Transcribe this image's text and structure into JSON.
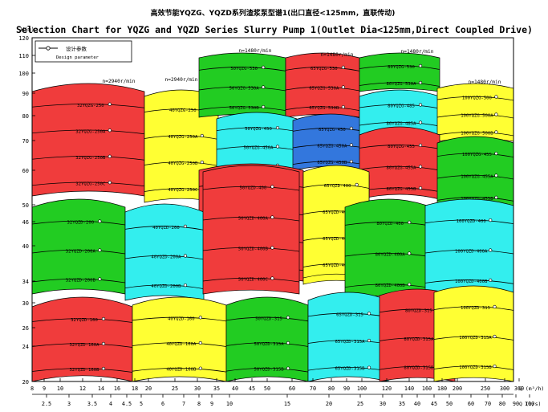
{
  "chart_data": {
    "type": "area",
    "title_cn": "高效节能YQZG、YQZD系列渣浆泵型谱1(出口直径<125mm，直联传动)",
    "title_en": "Selection Chart for YQZG and YQZD Series Slurry Pump 1(Outlet Dia<125mm,Direct Coupled Drive)",
    "ylabel": "H(m)",
    "xlabel_q": "Q (m³/h)",
    "xlabel_l": "Q (l/s)",
    "x_scale": "log",
    "y_scale": "log",
    "ylim": [
      20,
      120
    ],
    "xlim": [
      8,
      360
    ],
    "y_ticks": [
      120,
      110,
      100,
      90,
      80,
      70,
      60,
      50,
      46,
      40,
      34,
      30,
      26,
      24,
      20
    ],
    "x_ticks_q": [
      "8",
      "9",
      "10",
      "12",
      "14",
      "16",
      "18",
      "20",
      "25",
      "30",
      "35",
      "40",
      "45",
      "50",
      "60",
      "70",
      "80",
      "90",
      "100",
      "120",
      "140",
      "160",
      "180",
      "200",
      "250",
      "300",
      "360"
    ],
    "x_ticks_l": [
      "2.5",
      "3",
      "3.5",
      "4",
      "4.5",
      "5",
      "6",
      "7",
      "8",
      "9",
      "10",
      "15",
      "20",
      "25",
      "30",
      "35",
      "40",
      "45",
      "50",
      "60",
      "70",
      "80",
      "90",
      "100"
    ],
    "legend": {
      "cn": "设计参数",
      "en": "Design parameter"
    },
    "speeds": [
      "n=2940r/min",
      "n=2940r/min",
      "n=1480r/min",
      "n=1480r/min",
      "n=1480r/min",
      "n=1480r/min"
    ],
    "colors": {
      "red": "#f03c3c",
      "yellow": "#ffff33",
      "green": "#22cc22",
      "cyan": "#33eeee",
      "blue": "#3377dd"
    },
    "zones": [
      {
        "color": "red",
        "labels": [
          "32YQZG-250",
          "32YQZG-250A",
          "32YQZG-250B",
          "32YQZG-250C"
        ]
      },
      {
        "color": "yellow",
        "labels": [
          "40YQZG-250",
          "40YQZG-250A",
          "40YQZG-250B",
          "40YQZG-250C"
        ]
      },
      {
        "color": "green",
        "labels": [
          "50YQZG-530",
          "50YQZG-530A",
          "50YQZG-530B"
        ]
      },
      {
        "color": "red",
        "labels": [
          "65YQZG-530",
          "65YQZG-530A",
          "65YQZG-530B"
        ]
      },
      {
        "color": "green",
        "labels": [
          "80YQZG-530",
          "80YQZG-530A"
        ]
      },
      {
        "color": "cyan",
        "labels": [
          "50YQZG-450",
          "50YQZG-450A",
          "50YQZG-450B"
        ]
      },
      {
        "color": "blue",
        "labels": [
          "65YQZG-450",
          "65YQZG-450A",
          "65YQZG-450B"
        ]
      },
      {
        "color": "cyan",
        "labels": [
          "80YQZG-485",
          "80YQZG-485A",
          "80YQZG-485B"
        ]
      },
      {
        "color": "yellow",
        "labels": [
          "100YQZG-500",
          "100YQZG-500A",
          "100YQZG-500B"
        ]
      },
      {
        "color": "red",
        "labels": [
          "80YQZG-455",
          "80YQZG-455A",
          "80YQZG-455B"
        ]
      },
      {
        "color": "green",
        "labels": [
          "100YQZG-455",
          "100YQZG-455A",
          "100YQZG-455B"
        ]
      },
      {
        "color": "red",
        "labels": [
          "50YQZG-400",
          "50YQZG-400A",
          "50YQZG-400B",
          "50YQZG-400C"
        ]
      },
      {
        "color": "yellow",
        "labels": [
          "65YQZG-400",
          "65YQZG-400A",
          "65YQZG-400B",
          "65YQZG-400C"
        ]
      },
      {
        "color": "green",
        "labels": [
          "32YQZD-200",
          "32YQZD-200A",
          "32YQZD-200B"
        ]
      },
      {
        "color": "cyan",
        "labels": [
          "40YQZD-200",
          "40YQZD-200A",
          "40YQZD-200B"
        ]
      },
      {
        "color": "red",
        "labels": [
          "50YQZD-400",
          "50YQZD-400A",
          "50YQZD-400B",
          "50YQZD-400C"
        ]
      },
      {
        "color": "yellow",
        "labels": [
          "65YQZD-400",
          "65YQZD-400A",
          "65YQZD-400B",
          "65YQZD-400C"
        ]
      },
      {
        "color": "green",
        "labels": [
          "80YQZD-400",
          "80YQZD-400A",
          "80YQZD-400B"
        ]
      },
      {
        "color": "cyan",
        "labels": [
          "100YQZD-400",
          "100YQZD-400A",
          "100YQZD-400B"
        ]
      },
      {
        "color": "red",
        "labels": [
          "32YQZD-160",
          "32YQZD-160A",
          "32YQZD-160B"
        ]
      },
      {
        "color": "yellow",
        "labels": [
          "40YQZD-160",
          "40YQZD-160A",
          "40YQZD-160B"
        ]
      },
      {
        "color": "green",
        "labels": [
          "50YQZD-315",
          "50YQZD-315A",
          "50YQZD-315B"
        ]
      },
      {
        "color": "cyan",
        "labels": [
          "65YQZD-315",
          "65YQZD-315A",
          "65YQZD-315B"
        ]
      },
      {
        "color": "red",
        "labels": [
          "80YQZD-315",
          "80YQZD-315A",
          "80YQZD-315B"
        ]
      },
      {
        "color": "yellow",
        "labels": [
          "100YQZD-315",
          "100YQZD-315A",
          "100YQZD-315B"
        ]
      }
    ]
  }
}
